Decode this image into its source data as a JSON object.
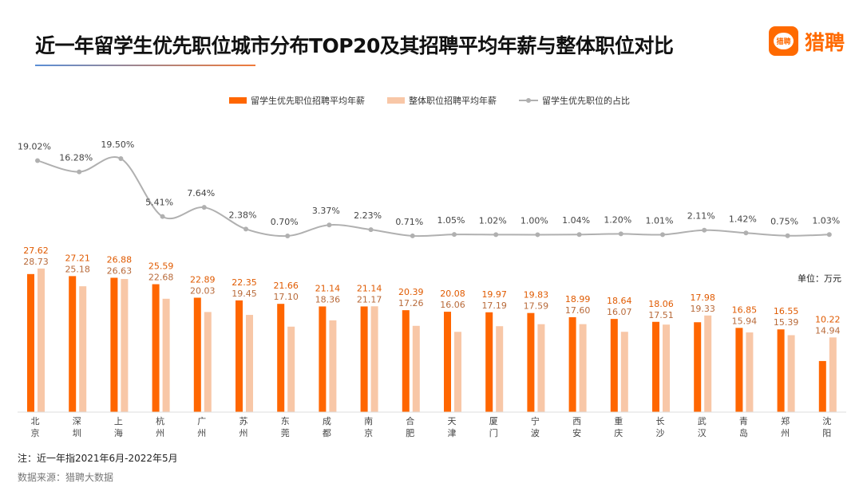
{
  "title": "近一年留学生优先职位城市分布TOP20及其招聘平均年薪与整体职位对比",
  "logo": {
    "icon_text": "猎聘",
    "text": "猎聘"
  },
  "unit": "单位：万元",
  "note": "注：近一年指2021年6月-2022年5月",
  "source": "数据来源：猎聘大数据",
  "colors": {
    "primary": "#ff6600",
    "secondary": "#f8c7a7",
    "line": "#b0b0b0"
  },
  "chart_data": {
    "type": "bar+line",
    "categories": [
      "北京",
      "深圳",
      "上海",
      "杭州",
      "广州",
      "苏州",
      "东莞",
      "成都",
      "南京",
      "合肥",
      "天津",
      "厦门",
      "宁波",
      "西安",
      "重庆",
      "长沙",
      "武汉",
      "青岛",
      "郑州",
      "沈阳"
    ],
    "series": [
      {
        "name": "留学生优先职位招聘平均年薪",
        "type": "bar",
        "values": [
          27.62,
          27.21,
          26.88,
          25.59,
          22.89,
          22.35,
          21.66,
          21.14,
          21.14,
          20.39,
          20.08,
          19.97,
          19.83,
          18.99,
          18.64,
          18.06,
          17.98,
          16.85,
          16.55,
          10.22
        ]
      },
      {
        "name": "整体职位招聘平均年薪",
        "type": "bar",
        "values": [
          28.73,
          25.18,
          26.63,
          22.68,
          20.03,
          19.45,
          17.1,
          18.36,
          21.17,
          17.26,
          16.06,
          17.19,
          17.59,
          17.6,
          16.07,
          17.51,
          19.33,
          15.94,
          15.39,
          14.94
        ]
      },
      {
        "name": "留学生优先职位的占比",
        "type": "line",
        "unit": "%",
        "values": [
          19.02,
          16.28,
          19.5,
          5.41,
          7.64,
          2.38,
          0.7,
          3.37,
          2.23,
          0.71,
          1.05,
          1.02,
          1.0,
          1.04,
          1.2,
          1.01,
          2.11,
          1.42,
          0.75,
          1.03
        ]
      }
    ],
    "legend_position": "top",
    "grid": false
  }
}
